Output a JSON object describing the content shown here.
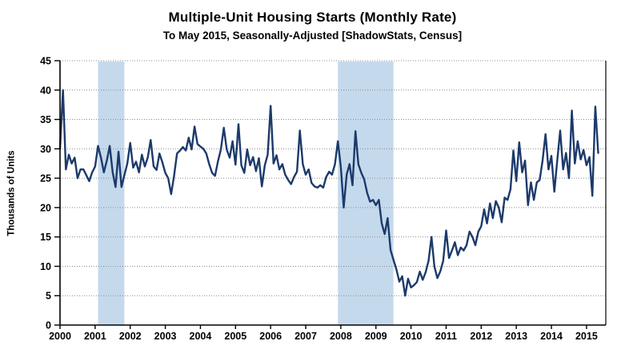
{
  "chart_data": {
    "type": "line",
    "title": "Multiple-Unit Housing Starts (Monthly Rate)",
    "subtitle": "To May 2015, Seasonally-Adjusted [ShadowStats, Census]",
    "ylabel": "Thousands of Units",
    "ylim": [
      0,
      45
    ],
    "ytick_step": 5,
    "x_tick_labels": [
      "2000",
      "2001",
      "2002",
      "2003",
      "2004",
      "2005",
      "2006",
      "2007",
      "2008",
      "2009",
      "2010",
      "2011",
      "2012",
      "2013",
      "2014",
      "2015"
    ],
    "x_start": "2000-01",
    "x_end": "2015-05",
    "grid": "horizontal-dotted",
    "legend": "none",
    "recession_bands": [
      {
        "from": "2001-02",
        "to": "2001-11"
      },
      {
        "from": "2007-12",
        "to": "2009-07"
      }
    ],
    "colors": {
      "line": "#1c3a6b",
      "band": "#c5d9ec",
      "grid": "#8c8c8c",
      "axis": "#000000"
    },
    "series": [
      {
        "name": "Multiple-unit housing starts (thousands of units, monthly rate)",
        "start": "2000-01",
        "frequency": "monthly",
        "values": [
          30.0,
          40.0,
          26.5,
          29.0,
          27.5,
          28.5,
          25.0,
          26.5,
          26.5,
          25.5,
          24.5,
          26.0,
          27.0,
          30.5,
          28.5,
          26.0,
          28.0,
          30.5,
          26.0,
          23.5,
          29.5,
          23.5,
          25.5,
          27.5,
          31.0,
          26.8,
          27.8,
          26.0,
          29.0,
          27.0,
          28.5,
          31.5,
          27.0,
          26.4,
          29.2,
          27.7,
          25.9,
          25.0,
          22.3,
          25.4,
          29.2,
          29.7,
          30.3,
          29.7,
          31.9,
          29.9,
          33.8,
          30.8,
          30.4,
          30.0,
          29.2,
          27.4,
          25.9,
          25.4,
          27.9,
          29.9,
          33.6,
          29.9,
          28.5,
          31.3,
          27.3,
          34.2,
          27.2,
          25.9,
          29.9,
          27.2,
          28.6,
          26.2,
          28.4,
          23.6,
          27.2,
          29.0,
          37.3,
          27.5,
          28.9,
          26.5,
          27.4,
          25.6,
          24.7,
          24.0,
          25.2,
          26.1,
          33.1,
          27.4,
          25.6,
          26.5,
          24.2,
          23.6,
          23.4,
          23.8,
          23.4,
          25.2,
          26.1,
          25.6,
          27.4,
          31.3,
          26.9,
          20.0,
          25.6,
          27.4,
          23.8,
          33.0,
          27.4,
          25.9,
          24.8,
          22.5,
          21.0,
          21.3,
          20.4,
          21.3,
          17.3,
          15.5,
          18.2,
          12.8,
          11.1,
          9.5,
          7.4,
          8.3,
          5.0,
          7.9,
          6.4,
          6.8,
          7.3,
          9.1,
          7.7,
          9.0,
          10.9,
          15.0,
          10.0,
          8.0,
          9.1,
          10.9,
          16.1,
          11.4,
          12.7,
          14.1,
          11.9,
          13.2,
          12.7,
          13.6,
          15.9,
          15.0,
          13.6,
          15.9,
          16.8,
          19.7,
          17.3,
          20.7,
          18.2,
          21.1,
          20.0,
          17.5,
          21.7,
          21.3,
          23.1,
          29.7,
          24.5,
          31.1,
          26.0,
          28.0,
          20.4,
          24.3,
          21.3,
          24.3,
          24.7,
          28.1,
          32.5,
          26.5,
          28.8,
          22.7,
          28.1,
          33.1,
          26.5,
          29.3,
          25.0,
          36.5,
          27.5,
          31.3,
          28.2,
          29.8,
          27.2,
          28.6,
          22.0,
          37.2,
          29.3
        ]
      }
    ]
  }
}
